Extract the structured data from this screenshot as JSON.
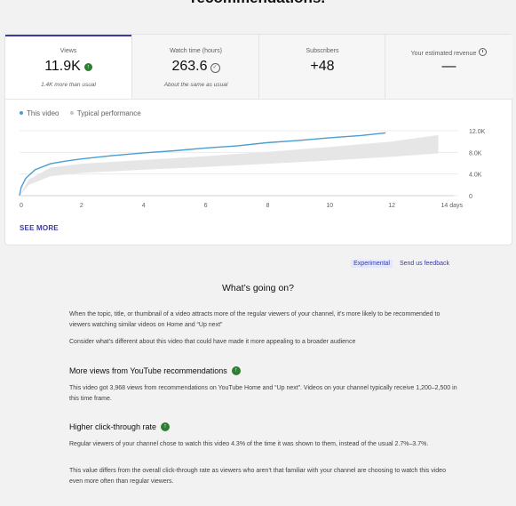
{
  "page_heading": "recommendations.",
  "tabs": [
    {
      "label": "Views",
      "value": "11.9K",
      "sub": "1.4K more than usual",
      "icon": "trend-up-icon"
    },
    {
      "label": "Watch time (hours)",
      "value": "263.6",
      "sub": "About the same as usual",
      "icon": "check-circle-icon"
    },
    {
      "label": "Subscribers",
      "value": "+48",
      "sub": ""
    },
    {
      "label": "Your estimated revenue",
      "value": "—",
      "sub": "",
      "icon": "clock-icon"
    }
  ],
  "legend": {
    "this_video": "This video",
    "typical": "Typical performance"
  },
  "colors": {
    "accent": "#3a3aa6",
    "this_video": "#4a9ed1",
    "typical_band": "#e6e6e6",
    "positive": "#2e7d32"
  },
  "chart_data": {
    "type": "line",
    "x_ticks": [
      "0",
      "2",
      "4",
      "6",
      "8",
      "10",
      "12",
      "14 days"
    ],
    "y_ticks": [
      "0",
      "4.0K",
      "8.0K",
      "12.0K"
    ],
    "xlim": [
      0,
      14
    ],
    "ylim": [
      0,
      12000
    ],
    "series": [
      {
        "name": "This video",
        "x": [
          0,
          0.05,
          0.2,
          0.5,
          1,
          1.5,
          2,
          3,
          4,
          5,
          6,
          7,
          8,
          9,
          10,
          11,
          11.8
        ],
        "y": [
          0,
          1500,
          3200,
          4800,
          5900,
          6400,
          6800,
          7400,
          7900,
          8300,
          8800,
          9200,
          9800,
          10200,
          10700,
          11100,
          11600
        ]
      }
    ],
    "typical_band": {
      "x": [
        0,
        0.3,
        1,
        2,
        4,
        6,
        8,
        10,
        12,
        13.5
      ],
      "low": [
        0,
        2000,
        3600,
        4200,
        4800,
        5300,
        5900,
        6500,
        7200,
        7800
      ],
      "high": [
        0,
        3000,
        5200,
        5900,
        6600,
        7300,
        8100,
        9000,
        10000,
        11200
      ]
    }
  },
  "see_more": "SEE MORE",
  "experimental_badge": "Experimental",
  "feedback_link": "Send us feedback",
  "section_title": "What’s going on?",
  "intro": [
    "When the topic, title, or thumbnail of a video attracts more of the regular viewers of your channel, it’s more likely to be recommended to viewers watching similar videos on Home and “Up next”",
    "Consider what’s different about this video that could have made it more appealing to a broader audience"
  ],
  "insights": [
    {
      "heading": "More views from YouTube recommendations",
      "paragraphs": [
        "This video got 3,968 views from recommendations on YouTube Home and “Up next”. Videos on your channel typically receive 1,200–2,500 in this time frame."
      ]
    },
    {
      "heading": "Higher click-through rate",
      "paragraphs": [
        "Regular viewers of your channel chose to watch this video 4.3% of the time it was shown to them, instead of the usual 2.7%–3.7%.",
        "This value differs from the overall click-through rate as viewers who aren’t that familiar with your channel are choosing to watch this video even more often than regular viewers."
      ]
    }
  ]
}
